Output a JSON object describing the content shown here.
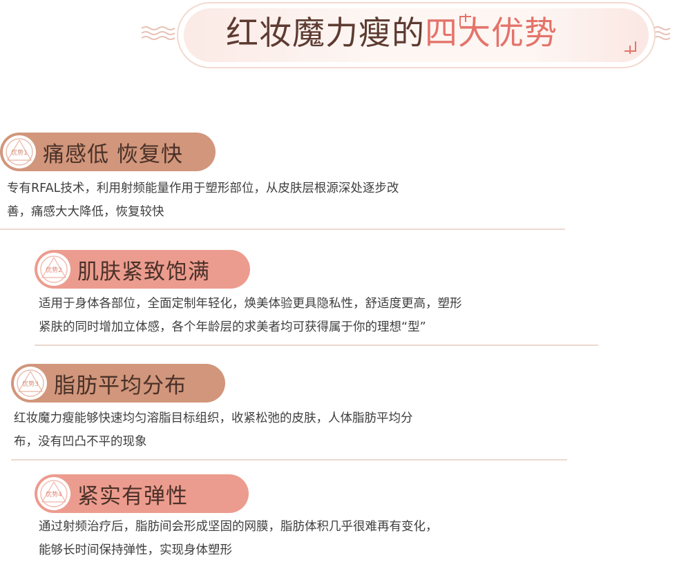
{
  "banner": {
    "title_main": "红妆魔力瘦的",
    "title_accent": "四大优势"
  },
  "colors": {
    "brown_pill": "#d1967b",
    "pink_pill": "#ec9c8e",
    "title_dark": "#5d3b31",
    "title_accent": "#e4736a",
    "divider": "#ecd9cf"
  },
  "sections": [
    {
      "badge": "优势1",
      "title": "痛感低 恢复快",
      "lines": [
        "专有RFAL技术，利用射频能量作用于塑形部位，从皮肤层根源深处逐步改",
        "善，痛感大大降低，恢复较快"
      ]
    },
    {
      "badge": "优势2",
      "title": "肌肤紧致饱满",
      "lines": [
        "适用于身体各部位，全面定制年轻化，焕美体验更具隐私性，舒适度更高，塑形",
        "紧肤的同时增加立体感，各个年龄层的求美者均可获得属于你的理想“型”"
      ]
    },
    {
      "badge": "优势3",
      "title": "脂肪平均分布",
      "lines": [
        "红妆魔力瘦能够快速均匀溶脂目标组织，收紧松弛的皮肤，人体脂肪平均分",
        "布，没有凹凸不平的现象"
      ]
    },
    {
      "badge": "优势4",
      "title": "紧实有弹性",
      "lines": [
        "通过射频治疗后，脂肪间会形成坚固的网膜，脂肪体积几乎很难再有变化，",
        "能够长时间保持弹性，实现身体塑形"
      ]
    }
  ]
}
